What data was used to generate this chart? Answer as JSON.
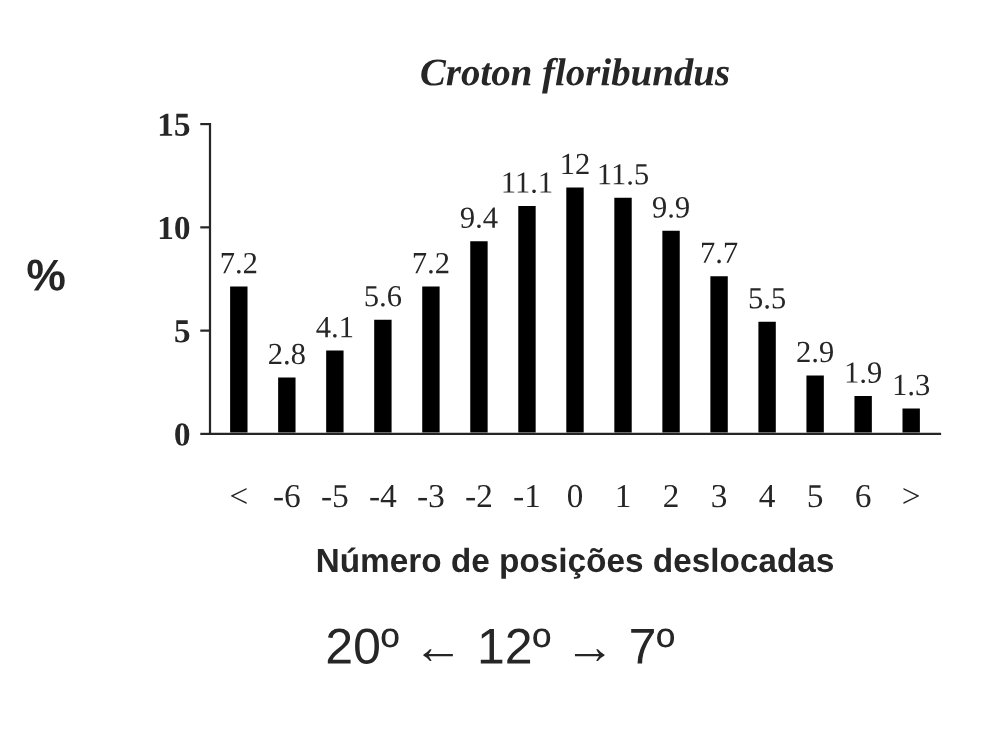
{
  "chart_data": {
    "type": "bar",
    "title": "Croton floribundus",
    "ylabel": "%",
    "xlabel": "Número de posições deslocadas",
    "annotations": [
      "20º ← 12º → 7º"
    ],
    "categories": [
      "<",
      "-6",
      "-5",
      "-4",
      "-3",
      "-2",
      "-1",
      "0",
      "1",
      "2",
      "3",
      "4",
      "5",
      "6",
      ">"
    ],
    "values": [
      7.2,
      2.8,
      4.1,
      5.6,
      7.2,
      9.4,
      11.1,
      12,
      11.5,
      9.9,
      7.7,
      5.5,
      2.9,
      1.9,
      1.3
    ],
    "color": "#000000",
    "ylim": [
      0,
      15
    ],
    "yticks": [
      0,
      5,
      10,
      15
    ],
    "data_labels": true
  }
}
